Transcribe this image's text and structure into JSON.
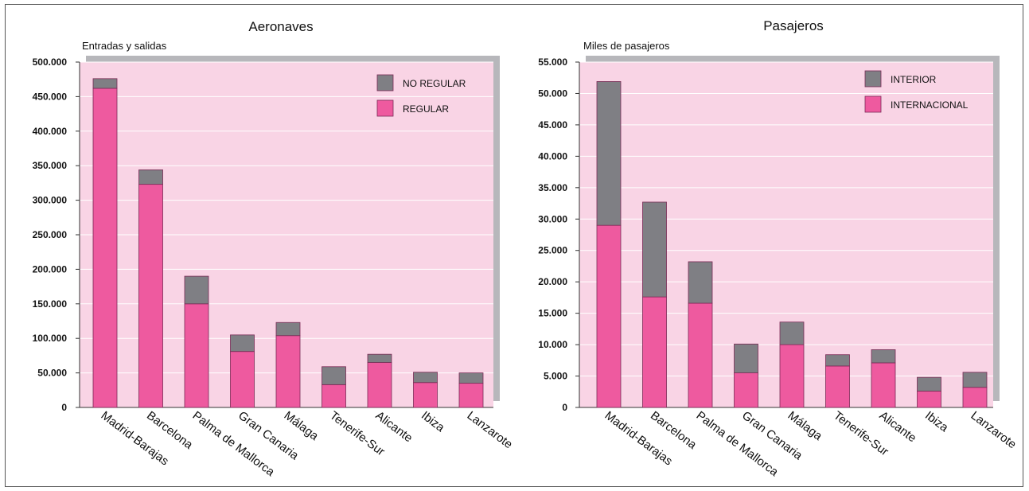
{
  "colors": {
    "background": "#f9d4e5",
    "shadow": "#b7b7bb",
    "grid": "#ffffff",
    "gray_segment": "#7f7f84",
    "pink_segment": "#ee5a9f",
    "border": "#555555"
  },
  "chart_data": [
    {
      "type": "bar",
      "stacked": true,
      "title": "Aeronaves",
      "ylabel": "Entradas y salidas",
      "categories": [
        "Madrid-Barajas",
        "Barcelona",
        "Palma de Mallorca",
        "Gran Canaria",
        "Málaga",
        "Tenerife-Sur",
        "Alicante",
        "Ibiza",
        "Lanzarote"
      ],
      "series": [
        {
          "name": "REGULAR",
          "color": "#ee5a9f",
          "values": [
            462000,
            323000,
            150000,
            81000,
            104000,
            33000,
            65000,
            36000,
            35000
          ]
        },
        {
          "name": "NO REGULAR",
          "color": "#7f7f84",
          "values": [
            14000,
            21000,
            40000,
            24000,
            19000,
            26000,
            12000,
            15000,
            15000
          ]
        }
      ],
      "legend": [
        "NO REGULAR",
        "REGULAR"
      ],
      "legend_position": "top-right",
      "ylim": [
        0,
        500000
      ],
      "yticks": [
        0,
        50000,
        100000,
        150000,
        200000,
        250000,
        300000,
        350000,
        400000,
        450000,
        500000
      ],
      "ytick_labels": [
        "0",
        "50.000",
        "100.000",
        "150.000",
        "200.000",
        "250.000",
        "300.000",
        "350.000",
        "400.000",
        "450.000",
        "500.000"
      ],
      "grid": true
    },
    {
      "type": "bar",
      "stacked": true,
      "title": "Pasajeros",
      "ylabel": "Miles de pasajeros",
      "categories": [
        "Madrid-Barajas",
        "Barcelona",
        "Palma de Mallorca",
        "Gran Canaria",
        "Málaga",
        "Tenerife-Sur",
        "Alicante",
        "Ibiza",
        "Lanzarote"
      ],
      "series": [
        {
          "name": "INTERNACIONAL",
          "color": "#ee5a9f",
          "values": [
            29000,
            17600,
            16600,
            5500,
            10000,
            6600,
            7100,
            2600,
            3200
          ]
        },
        {
          "name": "INTERIOR",
          "color": "#7f7f84",
          "values": [
            22900,
            15100,
            6600,
            4600,
            3600,
            1800,
            2100,
            2200,
            2400
          ]
        }
      ],
      "legend": [
        "INTERIOR",
        "INTERNACIONAL"
      ],
      "legend_position": "top-right",
      "ylim": [
        0,
        55000
      ],
      "yticks": [
        0,
        5000,
        10000,
        15000,
        20000,
        25000,
        30000,
        35000,
        40000,
        45000,
        50000,
        55000
      ],
      "ytick_labels": [
        "0",
        "5.000",
        "10.000",
        "15.000",
        "20.000",
        "25.000",
        "30.000",
        "35.000",
        "40.000",
        "45.000",
        "50.000",
        "55.000"
      ],
      "grid": true
    }
  ]
}
